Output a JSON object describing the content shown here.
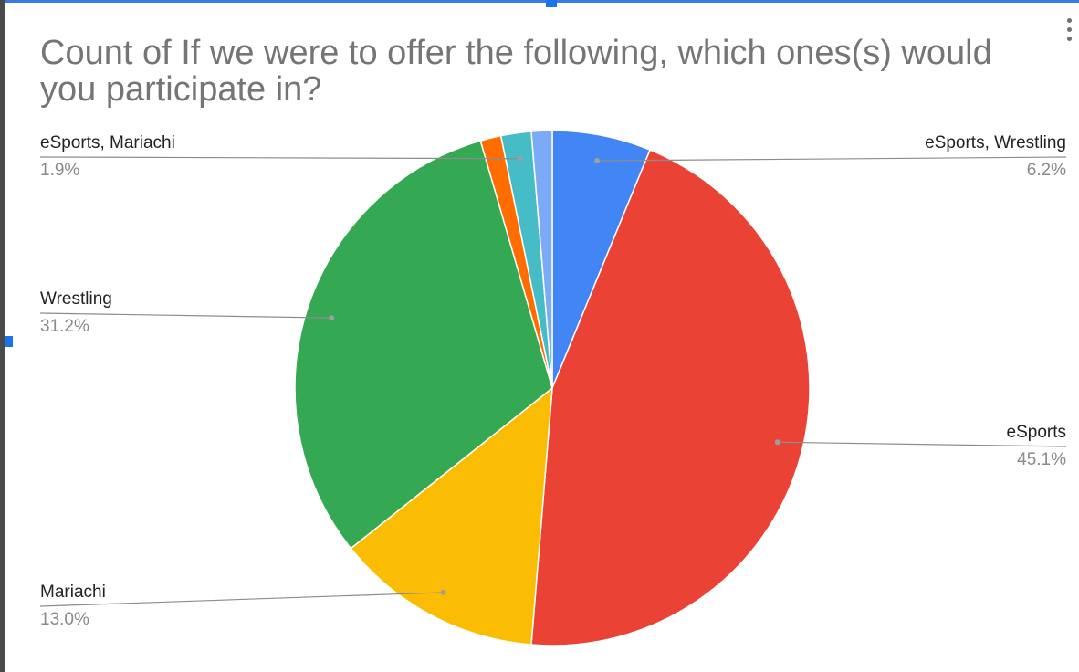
{
  "chart_data": {
    "type": "pie",
    "title": "Count of If we were to offer the following, which ones(s) would you participate in?",
    "slices": [
      {
        "label": "eSports, Wrestling",
        "percent_label": "6.2%",
        "value": 6.2,
        "color": "#4285f4"
      },
      {
        "label": "eSports",
        "percent_label": "45.1%",
        "value": 45.1,
        "color": "#ea4335"
      },
      {
        "label": "Mariachi",
        "percent_label": "13.0%",
        "value": 13.0,
        "color": "#fbbc04"
      },
      {
        "label": "Wrestling",
        "percent_label": "31.2%",
        "value": 31.2,
        "color": "#34a853"
      },
      {
        "label": "",
        "percent_label": "",
        "value": 1.3,
        "color": "#ff6d01"
      },
      {
        "label": "eSports, Mariachi",
        "percent_label": "1.9%",
        "value": 1.9,
        "color": "#46bdc6"
      },
      {
        "label": "",
        "percent_label": "",
        "value": 1.3,
        "color": "#7baaf7"
      }
    ],
    "legend": "labels beside slices"
  }
}
